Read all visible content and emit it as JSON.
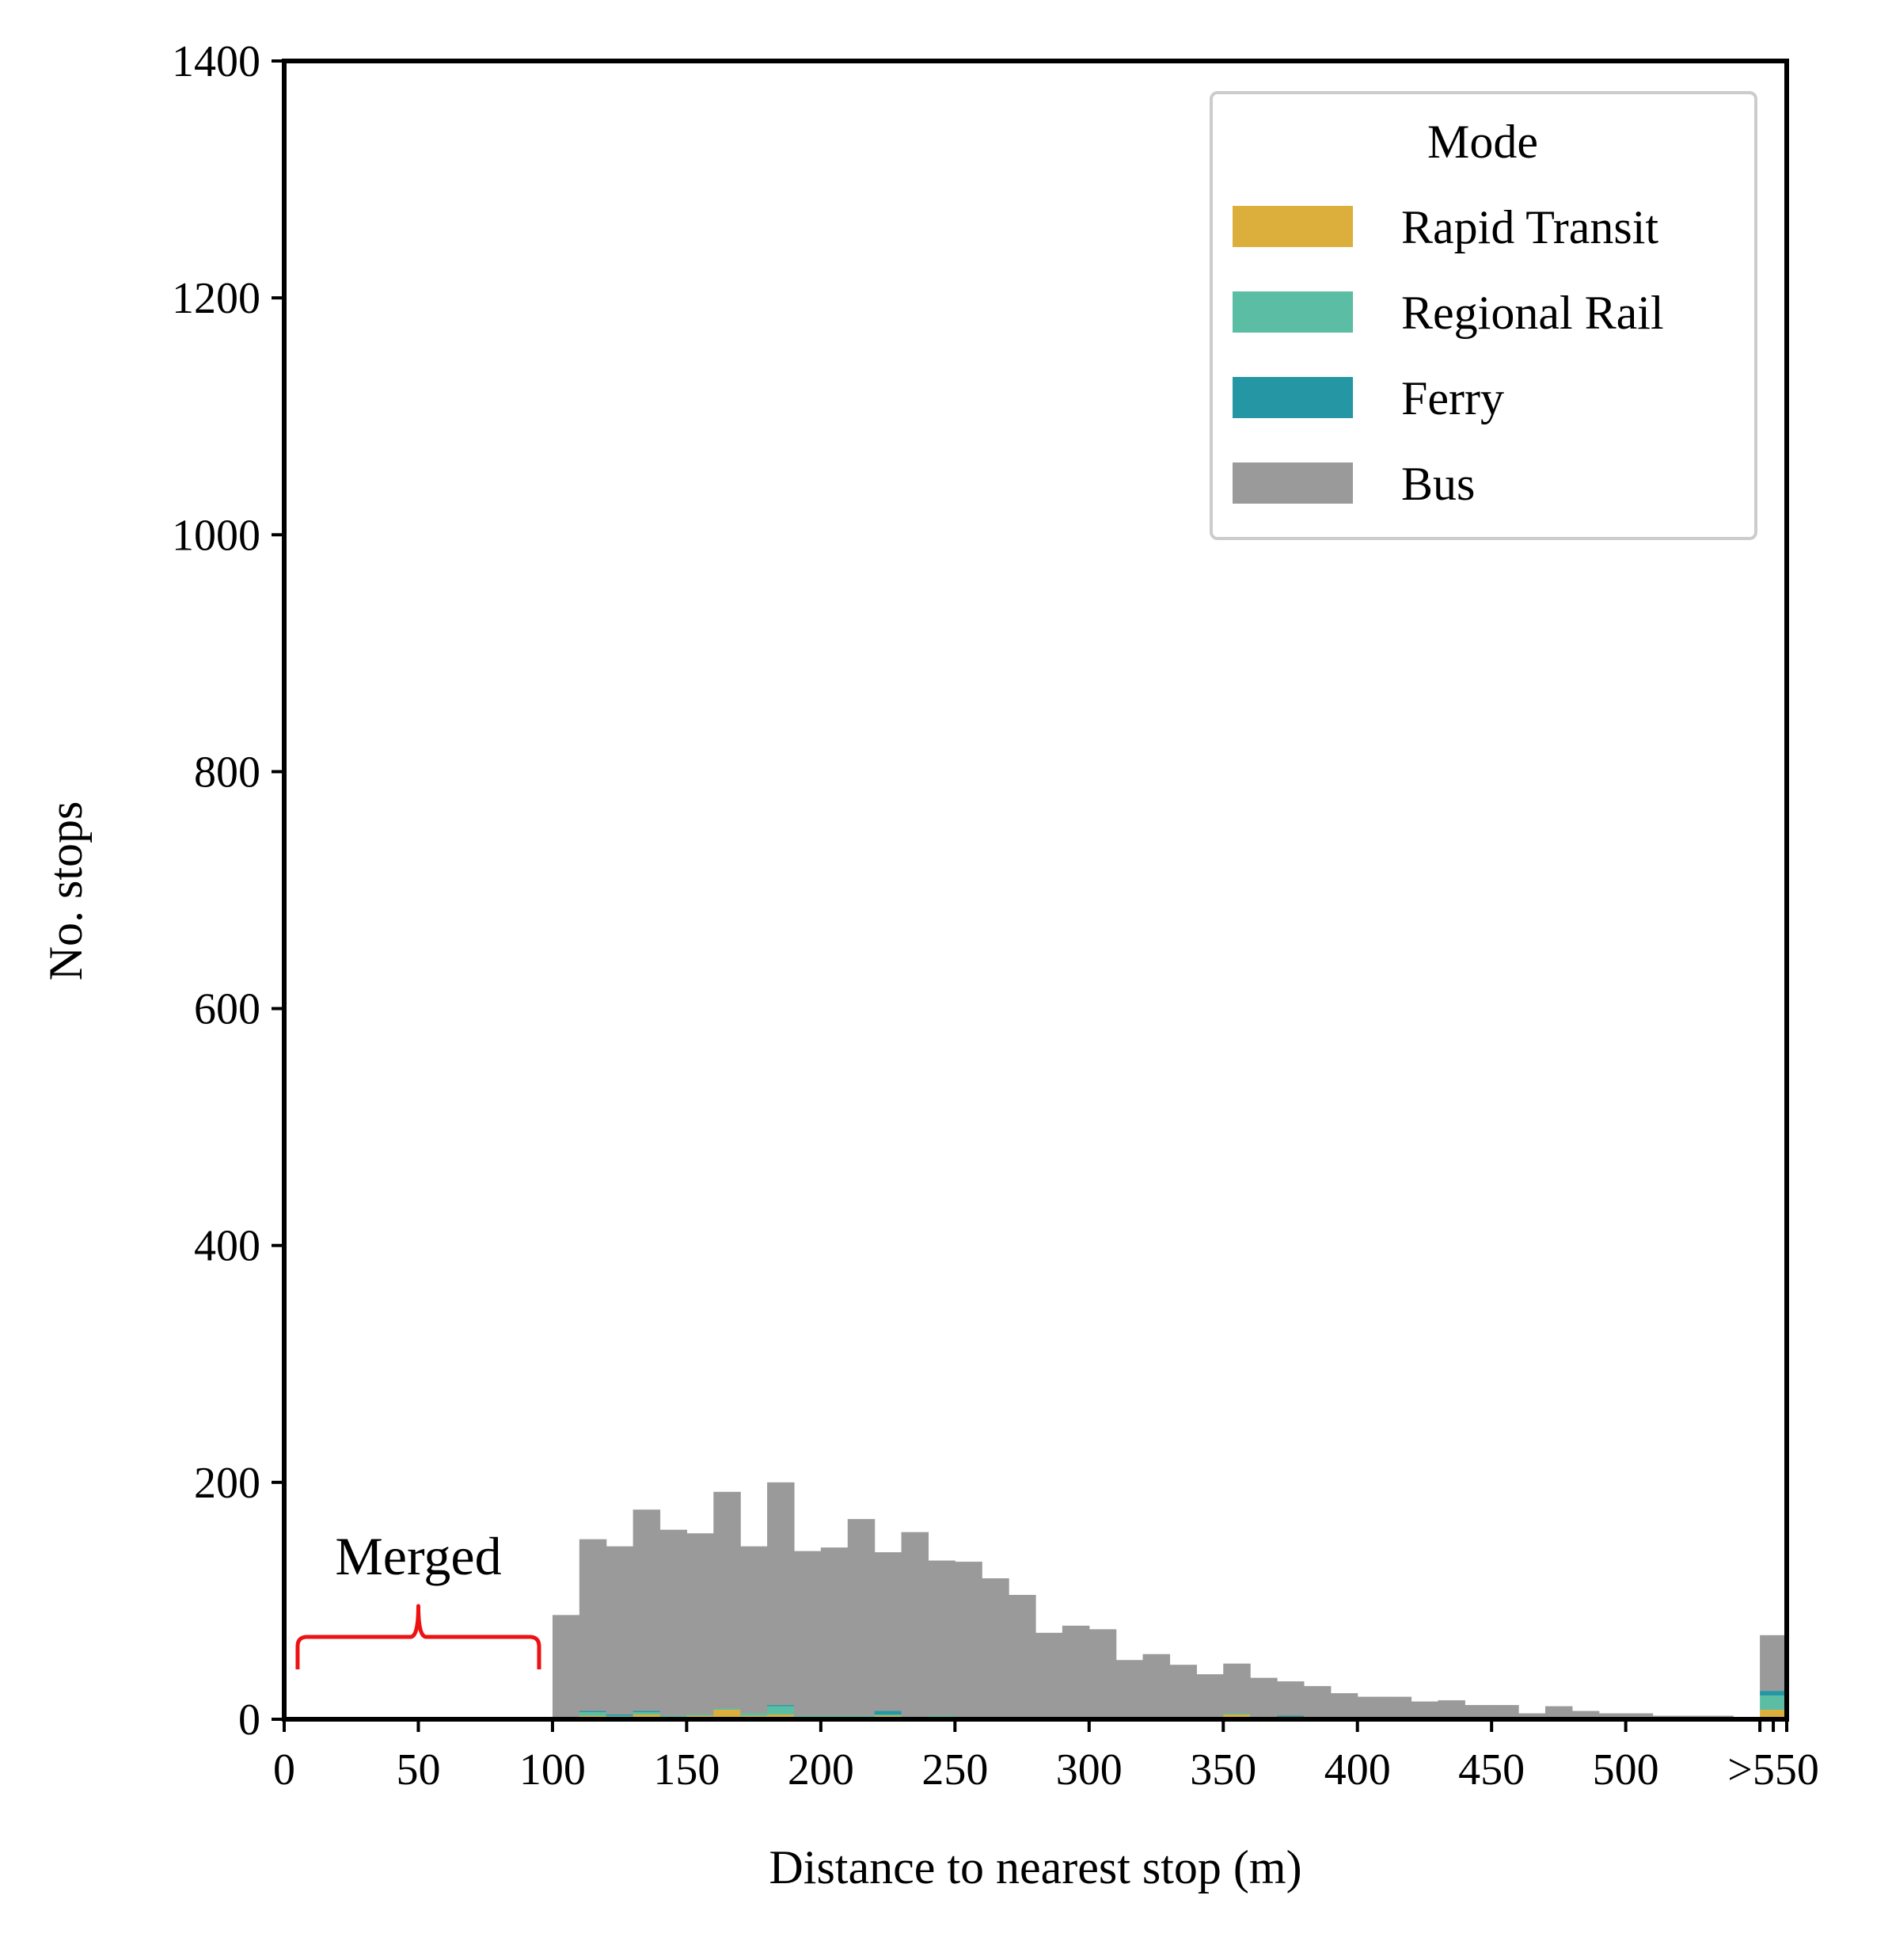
{
  "chart_data": {
    "type": "bar",
    "stacked": true,
    "xlabel": "Distance to nearest stop (m)",
    "ylabel": "No. stops",
    "xlim": [
      0,
      560
    ],
    "ylim": [
      0,
      1400
    ],
    "bin_width": 10,
    "x_ticks": [
      {
        "value": 0,
        "label": "0"
      },
      {
        "value": 50,
        "label": "50"
      },
      {
        "value": 100,
        "label": "100"
      },
      {
        "value": 150,
        "label": "150"
      },
      {
        "value": 200,
        "label": "200"
      },
      {
        "value": 250,
        "label": "250"
      },
      {
        "value": 300,
        "label": "300"
      },
      {
        "value": 350,
        "label": "350"
      },
      {
        "value": 400,
        "label": "400"
      },
      {
        "value": 450,
        "label": "450"
      },
      {
        "value": 500,
        "label": "500"
      },
      {
        "value": 555,
        "label": ">550"
      }
    ],
    "y_ticks": [
      0,
      200,
      400,
      600,
      800,
      1000,
      1200,
      1400
    ],
    "legend": {
      "title": "Mode",
      "position": "top-right"
    },
    "colors": {
      "Rapid Transit": "#dcaf3c",
      "Regional Rail": "#5bbda3",
      "Ferry": "#2596a3",
      "Bus": "#9a9a9a",
      "annotation": "#ee1111"
    },
    "bins": [
      100,
      110,
      120,
      130,
      140,
      150,
      160,
      170,
      180,
      190,
      200,
      210,
      220,
      230,
      240,
      250,
      260,
      270,
      280,
      290,
      300,
      310,
      320,
      330,
      340,
      350,
      360,
      370,
      380,
      390,
      400,
      410,
      420,
      430,
      440,
      450,
      460,
      470,
      480,
      490,
      500,
      510,
      520,
      530,
      540,
      550
    ],
    "series": [
      {
        "name": "Rapid Transit",
        "values": [
          1,
          3,
          2,
          4,
          2,
          3,
          8,
          3,
          4,
          2,
          2,
          2,
          3,
          1,
          2,
          1,
          1,
          1,
          1,
          1,
          1,
          1,
          1,
          1,
          1,
          4,
          1,
          1,
          1,
          1,
          0,
          0,
          0,
          0,
          0,
          0,
          0,
          0,
          0,
          0,
          0,
          0,
          0,
          0,
          0,
          8
        ]
      },
      {
        "name": "Regional Rail",
        "values": [
          1,
          3,
          1,
          2,
          1,
          1,
          1,
          2,
          7,
          1,
          1,
          1,
          1,
          1,
          1,
          1,
          1,
          1,
          1,
          1,
          1,
          1,
          1,
          1,
          1,
          1,
          1,
          1,
          1,
          0,
          0,
          0,
          0,
          0,
          0,
          0,
          0,
          0,
          0,
          0,
          0,
          0,
          0,
          0,
          0,
          12
        ]
      },
      {
        "name": "Ferry",
        "values": [
          0,
          1,
          1,
          1,
          0,
          0,
          0,
          0,
          1,
          0,
          0,
          0,
          3,
          0,
          0,
          0,
          0,
          0,
          0,
          0,
          0,
          0,
          0,
          0,
          0,
          0,
          0,
          1,
          0,
          0,
          0,
          0,
          0,
          0,
          0,
          0,
          0,
          0,
          0,
          0,
          0,
          0,
          0,
          0,
          0,
          4
        ]
      },
      {
        "name": "Bus",
        "values": [
          86,
          145,
          142,
          170,
          157,
          153,
          183,
          141,
          188,
          139,
          142,
          166,
          134,
          156,
          131,
          131,
          117,
          103,
          71,
          77,
          74,
          48,
          53,
          44,
          36,
          42,
          33,
          29,
          26,
          21,
          19,
          19,
          15,
          16,
          12,
          12,
          5,
          11,
          7,
          5,
          5,
          3,
          3,
          3,
          2,
          47
        ]
      }
    ],
    "annotations": [
      {
        "text": "Merged",
        "x_range": [
          5,
          95
        ],
        "type": "brace"
      }
    ]
  }
}
